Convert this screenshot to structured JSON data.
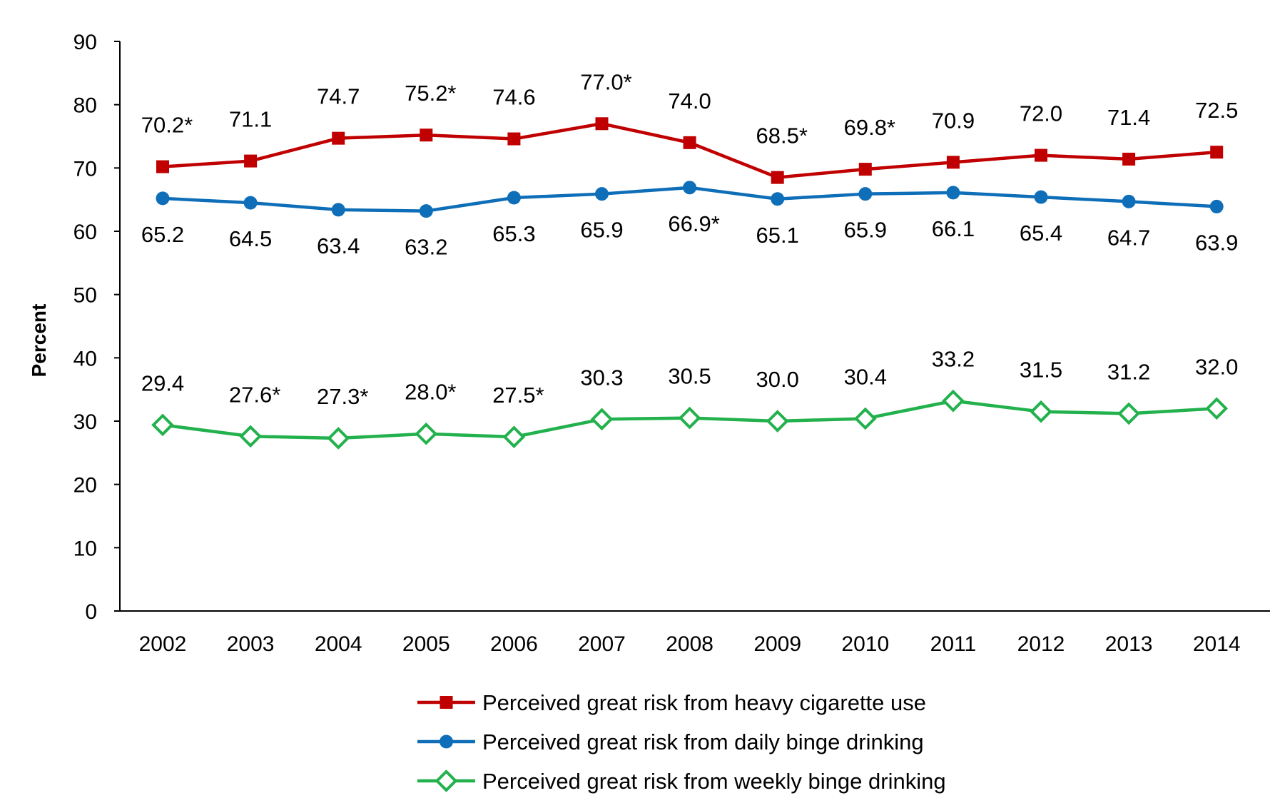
{
  "chart_data": {
    "type": "line",
    "title": "",
    "xlabel": "",
    "ylabel": "Percent",
    "ylim": [
      0,
      90
    ],
    "yticks": [
      0,
      10,
      20,
      30,
      40,
      50,
      60,
      70,
      80,
      90
    ],
    "grid": false,
    "legend_position": "bottom",
    "categories": [
      "2002",
      "2003",
      "2004",
      "2005",
      "2006",
      "2007",
      "2008",
      "2009",
      "2010",
      "2011",
      "2012",
      "2013",
      "2014"
    ],
    "series": [
      {
        "name": "Perceived great risk from heavy cigarette use",
        "color": "#c00000",
        "marker": "square",
        "label_position": "above",
        "values": [
          70.2,
          71.1,
          74.7,
          75.2,
          74.6,
          77.0,
          74.0,
          68.5,
          69.8,
          70.9,
          72.0,
          71.4,
          72.5
        ],
        "labels": [
          "70.2*",
          "71.1",
          "74.7",
          "75.2*",
          "74.6",
          "77.0*",
          "74.0",
          "68.5*",
          "69.8*",
          "70.9",
          "72.0",
          "71.4",
          "72.5"
        ]
      },
      {
        "name": "Perceived great risk from daily binge drinking",
        "color": "#0e6eb8",
        "marker": "circle",
        "label_position": "below",
        "values": [
          65.2,
          64.5,
          63.4,
          63.2,
          65.3,
          65.9,
          66.9,
          65.1,
          65.9,
          66.1,
          65.4,
          64.7,
          63.9
        ],
        "labels": [
          "65.2",
          "64.5",
          "63.4",
          "63.2",
          "65.3",
          "65.9",
          "66.9*",
          "65.1",
          "65.9",
          "66.1",
          "65.4",
          "64.7",
          "63.9"
        ]
      },
      {
        "name": "Perceived great risk from weekly binge drinking",
        "color": "#22b14c",
        "marker": "diamond-open",
        "label_position": "above",
        "values": [
          29.4,
          27.6,
          27.3,
          28.0,
          27.5,
          30.3,
          30.5,
          30.0,
          30.4,
          33.2,
          31.5,
          31.2,
          32.0
        ],
        "labels": [
          "29.4",
          "27.6*",
          "27.3*",
          "28.0*",
          "27.5*",
          "30.3",
          "30.5",
          "30.0",
          "30.4",
          "33.2",
          "31.5",
          "31.2",
          "32.0"
        ]
      }
    ]
  }
}
